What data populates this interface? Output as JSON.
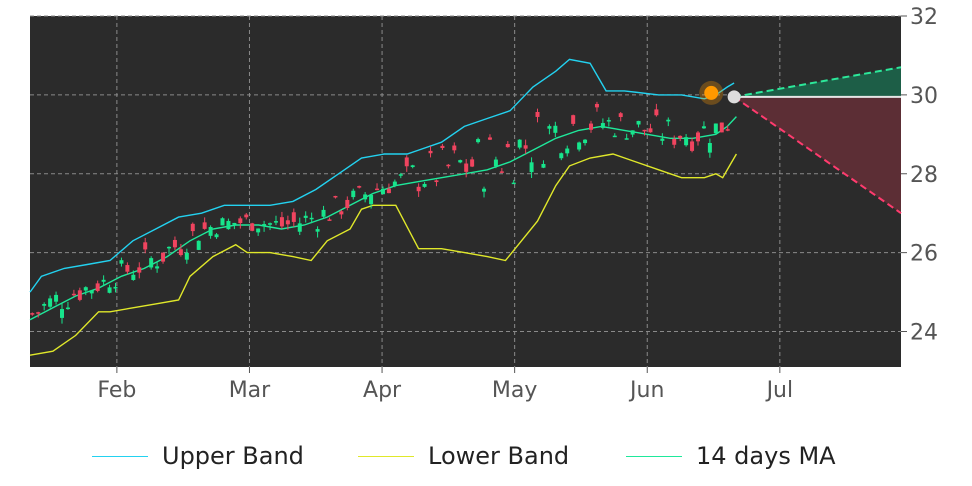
{
  "chart_data": {
    "type": "candlestick",
    "x_axis": {
      "tick_labels": [
        "Feb",
        "Mar",
        "Apr",
        "May",
        "Jun",
        "Jul"
      ]
    },
    "y_axis": {
      "position": "right",
      "tick_labels": [
        "24",
        "26",
        "28",
        "30",
        "32"
      ],
      "ylim": [
        23.1,
        32.0
      ]
    },
    "grid": true,
    "legend_placement": "bottom",
    "colors": {
      "background": "#2b2b2b",
      "up_candle": "#17e58c",
      "down_candle": "#f0445f",
      "upper_band": "#23d2f0",
      "lower_band": "#e0e82a",
      "ma": "#1fe89b",
      "marker_current": "#ff9900",
      "marker_projection": "#dddddd"
    },
    "series": [
      {
        "name": "Upper Band",
        "points": [
          [
            0,
            25.0
          ],
          [
            5,
            25.4
          ],
          [
            15,
            25.6
          ],
          [
            25,
            25.7
          ],
          [
            35,
            25.8
          ],
          [
            45,
            26.3
          ],
          [
            55,
            26.6
          ],
          [
            65,
            26.9
          ],
          [
            75,
            27.0
          ],
          [
            85,
            27.2
          ],
          [
            95,
            27.2
          ],
          [
            105,
            27.2
          ],
          [
            115,
            27.3
          ],
          [
            125,
            27.6
          ],
          [
            135,
            28.0
          ],
          [
            145,
            28.4
          ],
          [
            155,
            28.5
          ],
          [
            165,
            28.5
          ],
          [
            170,
            28.6
          ],
          [
            180,
            28.8
          ],
          [
            190,
            29.2
          ],
          [
            200,
            29.4
          ],
          [
            210,
            29.6
          ],
          [
            220,
            30.2
          ],
          [
            230,
            30.6
          ],
          [
            236,
            30.9
          ],
          [
            245,
            30.8
          ],
          [
            252,
            30.1
          ],
          [
            260,
            30.1
          ],
          [
            275,
            30.0
          ],
          [
            285,
            30.0
          ],
          [
            295,
            29.9
          ],
          [
            300,
            30.0
          ],
          [
            305,
            30.2
          ],
          [
            308,
            30.3
          ]
        ]
      },
      {
        "name": "Lower Band",
        "points": [
          [
            0,
            23.4
          ],
          [
            10,
            23.5
          ],
          [
            20,
            23.9
          ],
          [
            30,
            24.5
          ],
          [
            35,
            24.5
          ],
          [
            45,
            24.6
          ],
          [
            55,
            24.7
          ],
          [
            65,
            24.8
          ],
          [
            70,
            25.4
          ],
          [
            80,
            25.9
          ],
          [
            90,
            26.2
          ],
          [
            95,
            26.0
          ],
          [
            105,
            26.0
          ],
          [
            115,
            25.9
          ],
          [
            123,
            25.8
          ],
          [
            130,
            26.3
          ],
          [
            140,
            26.6
          ],
          [
            145,
            27.1
          ],
          [
            150,
            27.2
          ],
          [
            160,
            27.2
          ],
          [
            170,
            26.1
          ],
          [
            180,
            26.1
          ],
          [
            190,
            26.0
          ],
          [
            200,
            25.9
          ],
          [
            208,
            25.8
          ],
          [
            215,
            26.3
          ],
          [
            222,
            26.8
          ],
          [
            230,
            27.7
          ],
          [
            236,
            28.2
          ],
          [
            245,
            28.4
          ],
          [
            255,
            28.5
          ],
          [
            265,
            28.3
          ],
          [
            275,
            28.1
          ],
          [
            285,
            27.9
          ],
          [
            295,
            27.9
          ],
          [
            300,
            28.0
          ],
          [
            303,
            27.9
          ],
          [
            306,
            28.2
          ],
          [
            309,
            28.5
          ]
        ]
      },
      {
        "name": "14 days MA",
        "points": [
          [
            0,
            24.3
          ],
          [
            10,
            24.6
          ],
          [
            20,
            24.9
          ],
          [
            30,
            25.1
          ],
          [
            40,
            25.4
          ],
          [
            50,
            25.6
          ],
          [
            60,
            25.9
          ],
          [
            70,
            26.3
          ],
          [
            80,
            26.6
          ],
          [
            90,
            26.7
          ],
          [
            100,
            26.7
          ],
          [
            110,
            26.6
          ],
          [
            120,
            26.7
          ],
          [
            130,
            26.9
          ],
          [
            140,
            27.2
          ],
          [
            150,
            27.5
          ],
          [
            160,
            27.7
          ],
          [
            170,
            27.8
          ],
          [
            180,
            27.9
          ],
          [
            190,
            28.0
          ],
          [
            200,
            28.1
          ],
          [
            210,
            28.3
          ],
          [
            220,
            28.6
          ],
          [
            230,
            28.9
          ],
          [
            240,
            29.1
          ],
          [
            250,
            29.2
          ],
          [
            260,
            29.1
          ],
          [
            270,
            29.0
          ],
          [
            280,
            28.9
          ],
          [
            290,
            28.9
          ],
          [
            300,
            29.0
          ],
          [
            305,
            29.2
          ],
          [
            309,
            29.45
          ]
        ]
      }
    ],
    "current_marker": {
      "x": 298,
      "y": 30.05
    },
    "projection": {
      "start": {
        "x": 308,
        "y": 29.95
      },
      "end_x": 381,
      "upper_end": 30.7,
      "lower_end": 27.0,
      "fill_upper": "#1d5e47",
      "fill_lower": "#5c2e35",
      "line_upper": "#2ce89a",
      "line_lower": "#ff3b6e"
    }
  },
  "legend": {
    "upper_band_label": "Upper Band",
    "lower_band_label": "Lower Band",
    "ma_label": "14 days MA"
  }
}
